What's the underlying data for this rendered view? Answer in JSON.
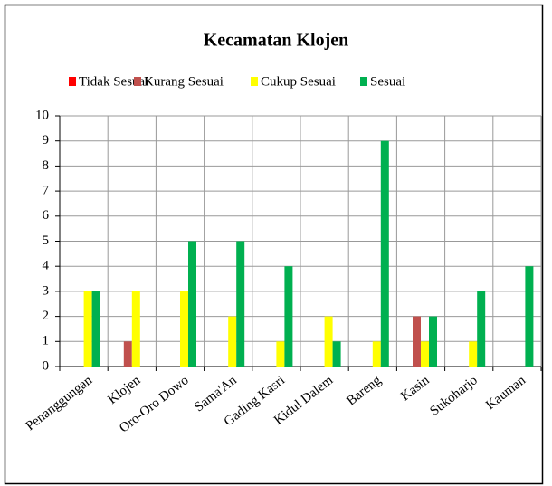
{
  "chart_data": {
    "type": "bar",
    "title": "Kecamatan Klojen",
    "categories": [
      "Penanggungan",
      "Klojen",
      "Oro-Oro Dowo",
      "Sama'An",
      "Gading Kasri",
      "Kidul Dalem",
      "Bareng",
      "Kasin",
      "Sukoharjo",
      "Kauman"
    ],
    "series": [
      {
        "name": "Tidak Sesuai",
        "color": "#ff0000",
        "values": [
          0,
          0,
          0,
          0,
          0,
          0,
          0,
          0,
          0,
          0
        ]
      },
      {
        "name": "Kurang Sesuai",
        "color": "#c0504d",
        "values": [
          0,
          1,
          0,
          0,
          0,
          0,
          0,
          2,
          0,
          0
        ]
      },
      {
        "name": "Cukup Sesuai",
        "color": "#ffff00",
        "values": [
          3,
          3,
          3,
          2,
          1,
          2,
          1,
          1,
          1,
          0
        ]
      },
      {
        "name": "Sesuai",
        "color": "#00b050",
        "values": [
          3,
          0,
          5,
          5,
          4,
          1,
          9,
          2,
          3,
          4
        ]
      }
    ],
    "ylim": [
      0,
      10
    ],
    "yticks": [
      0,
      1,
      2,
      3,
      4,
      5,
      6,
      7,
      8,
      9,
      10
    ],
    "grid": true,
    "legend": "top"
  }
}
